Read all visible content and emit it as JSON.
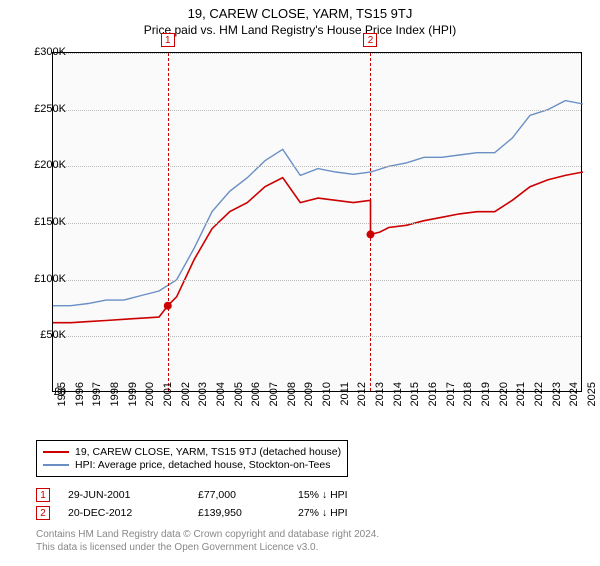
{
  "title": "19, CAREW CLOSE, YARM, TS15 9TJ",
  "subtitle": "Price paid vs. HM Land Registry's House Price Index (HPI)",
  "chart": {
    "type": "line",
    "background_color": "#fafafa",
    "grid_color": "#bbbbbb",
    "border_color": "#000000",
    "ylim": [
      0,
      300000
    ],
    "ytick_step": 50000,
    "ylabels": [
      "£0",
      "£50K",
      "£100K",
      "£150K",
      "£200K",
      "£250K",
      "£300K"
    ],
    "xlim": [
      1995,
      2025
    ],
    "xlabels": [
      "1995",
      "1996",
      "1997",
      "1998",
      "1999",
      "2000",
      "2001",
      "2002",
      "2003",
      "2004",
      "2005",
      "2006",
      "2007",
      "2008",
      "2009",
      "2010",
      "2011",
      "2012",
      "2013",
      "2014",
      "2015",
      "2016",
      "2017",
      "2018",
      "2019",
      "2020",
      "2021",
      "2022",
      "2023",
      "2024",
      "2025"
    ],
    "series": [
      {
        "name": "price_paid",
        "label": "19, CAREW CLOSE, YARM, TS15 9TJ (detached house)",
        "color": "#cc0000",
        "line_width": 1.6,
        "points": [
          [
            1995,
            62000
          ],
          [
            1996,
            62000
          ],
          [
            1997,
            63000
          ],
          [
            1998,
            64000
          ],
          [
            1999,
            65000
          ],
          [
            2000,
            66000
          ],
          [
            2001,
            67000
          ],
          [
            2001.5,
            77000
          ],
          [
            2002,
            85000
          ],
          [
            2003,
            118000
          ],
          [
            2004,
            145000
          ],
          [
            2005,
            160000
          ],
          [
            2006,
            168000
          ],
          [
            2007,
            182000
          ],
          [
            2008,
            190000
          ],
          [
            2009,
            168000
          ],
          [
            2010,
            172000
          ],
          [
            2011,
            170000
          ],
          [
            2012,
            168000
          ],
          [
            2012.97,
            170000
          ],
          [
            2012.97,
            139950
          ],
          [
            2013.5,
            142000
          ],
          [
            2014,
            146000
          ],
          [
            2015,
            148000
          ],
          [
            2016,
            152000
          ],
          [
            2017,
            155000
          ],
          [
            2018,
            158000
          ],
          [
            2019,
            160000
          ],
          [
            2020,
            160000
          ],
          [
            2021,
            170000
          ],
          [
            2022,
            182000
          ],
          [
            2023,
            188000
          ],
          [
            2024,
            192000
          ],
          [
            2025,
            195000
          ]
        ]
      },
      {
        "name": "hpi",
        "label": "HPI: Average price, detached house, Stockton-on-Tees",
        "color": "#6a8fc5",
        "line_width": 1.4,
        "points": [
          [
            1995,
            77000
          ],
          [
            1996,
            77000
          ],
          [
            1997,
            79000
          ],
          [
            1998,
            82000
          ],
          [
            1999,
            82000
          ],
          [
            2000,
            86000
          ],
          [
            2001,
            90000
          ],
          [
            2002,
            100000
          ],
          [
            2003,
            128000
          ],
          [
            2004,
            160000
          ],
          [
            2005,
            178000
          ],
          [
            2006,
            190000
          ],
          [
            2007,
            205000
          ],
          [
            2008,
            215000
          ],
          [
            2009,
            192000
          ],
          [
            2010,
            198000
          ],
          [
            2011,
            195000
          ],
          [
            2012,
            193000
          ],
          [
            2013,
            195000
          ],
          [
            2014,
            200000
          ],
          [
            2015,
            203000
          ],
          [
            2016,
            208000
          ],
          [
            2017,
            208000
          ],
          [
            2018,
            210000
          ],
          [
            2019,
            212000
          ],
          [
            2020,
            212000
          ],
          [
            2021,
            225000
          ],
          [
            2022,
            245000
          ],
          [
            2023,
            250000
          ],
          [
            2024,
            258000
          ],
          [
            2025,
            255000
          ]
        ]
      }
    ],
    "markers": [
      {
        "x": 2001.5,
        "y": 77000,
        "badge": "1"
      },
      {
        "x": 2012.97,
        "y": 139950,
        "badge": "2"
      }
    ]
  },
  "legend": {
    "items": [
      {
        "color": "#cc0000",
        "label": "19, CAREW CLOSE, YARM, TS15 9TJ (detached house)"
      },
      {
        "color": "#6a8fc5",
        "label": "HPI: Average price, detached house, Stockton-on-Tees"
      }
    ]
  },
  "transactions": [
    {
      "badge": "1",
      "date": "29-JUN-2001",
      "price": "£77,000",
      "delta": "15% ↓ HPI"
    },
    {
      "badge": "2",
      "date": "20-DEC-2012",
      "price": "£139,950",
      "delta": "27% ↓ HPI"
    }
  ],
  "footer": {
    "line1": "Contains HM Land Registry data © Crown copyright and database right 2024.",
    "line2": "This data is licensed under the Open Government Licence v3.0."
  },
  "fonts": {
    "title_size": 13,
    "subtitle_size": 12,
    "axis_size": 11,
    "legend_size": 10.5,
    "footer_size": 10
  }
}
